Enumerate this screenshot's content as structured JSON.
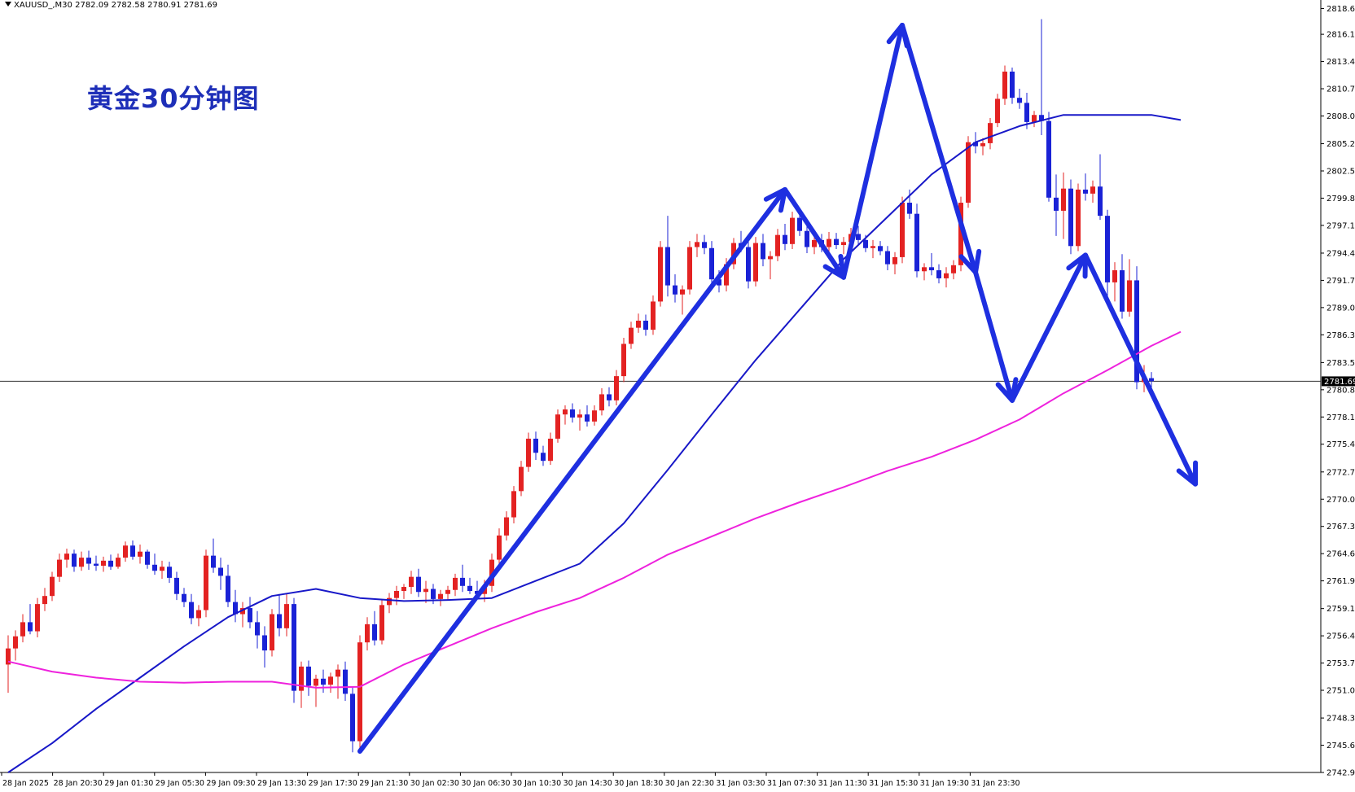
{
  "header": {
    "symbol_line": "XAUUSD_,M30  2782.09 2782.58 2780.91 2781.69"
  },
  "title": "黄金30分钟图",
  "colors": {
    "bull": "#e32222",
    "bear": "#1a22d6",
    "ma_fast": "#1818c8",
    "ma_slow": "#ee22dd",
    "arrows": "#1e2fe0",
    "title": "#1e2fb8"
  },
  "chart_data": {
    "type": "candlestick",
    "symbol": "XAUUSD_",
    "timeframe": "M30",
    "current_price": "2781.69",
    "y_ticks": [
      "2818.65",
      "2816.10",
      "2813.40",
      "2810.70",
      "2808.00",
      "2805.25",
      "2802.55",
      "2799.85",
      "2797.15",
      "2794.40",
      "2791.70",
      "2789.00",
      "2786.30",
      "2783.55",
      "2780.85",
      "2778.15",
      "2775.45",
      "2772.70",
      "2770.00",
      "2767.30",
      "2764.60",
      "2761.90",
      "2759.15",
      "2756.45",
      "2753.75",
      "2751.05",
      "2748.30",
      "2745.60",
      "2742.90"
    ],
    "x_ticks": [
      "28 Jan 2025",
      "28 Jan 20:30",
      "29 Jan 01:30",
      "29 Jan 05:30",
      "29 Jan 09:30",
      "29 Jan 13:30",
      "29 Jan 17:30",
      "29 Jan 21:30",
      "30 Jan 02:30",
      "30 Jan 06:30",
      "30 Jan 10:30",
      "30 Jan 14:30",
      "30 Jan 18:30",
      "30 Jan 22:30",
      "31 Jan 03:30",
      "31 Jan 07:30",
      "31 Jan 11:30",
      "31 Jan 15:30",
      "31 Jan 19:30",
      "31 Jan 23:30"
    ],
    "ylim": [
      2742.9,
      2819.5
    ],
    "candles": [
      [
        2753.6,
        2756.5,
        2750.8,
        2755.2
      ],
      [
        2755.2,
        2757.0,
        2754.0,
        2756.4
      ],
      [
        2756.4,
        2758.6,
        2755.8,
        2757.8
      ],
      [
        2757.8,
        2759.6,
        2756.6,
        2756.9
      ],
      [
        2756.9,
        2760.2,
        2756.3,
        2759.6
      ],
      [
        2759.6,
        2761.2,
        2758.9,
        2760.4
      ],
      [
        2760.4,
        2762.8,
        2759.9,
        2762.3
      ],
      [
        2762.3,
        2764.6,
        2761.8,
        2764.0
      ],
      [
        2764.0,
        2765.1,
        2763.2,
        2764.6
      ],
      [
        2764.6,
        2765.0,
        2762.8,
        2763.3
      ],
      [
        2763.3,
        2764.8,
        2762.9,
        2764.2
      ],
      [
        2764.2,
        2764.9,
        2763.0,
        2763.6
      ],
      [
        2763.6,
        2764.4,
        2762.9,
        2763.4
      ],
      [
        2763.4,
        2764.3,
        2762.8,
        2763.9
      ],
      [
        2763.9,
        2764.5,
        2763.0,
        2763.3
      ],
      [
        2763.3,
        2764.6,
        2763.1,
        2764.2
      ],
      [
        2764.2,
        2765.8,
        2763.8,
        2765.4
      ],
      [
        2765.4,
        2765.9,
        2764.0,
        2764.3
      ],
      [
        2764.3,
        2765.5,
        2763.6,
        2764.8
      ],
      [
        2764.8,
        2765.0,
        2763.1,
        2763.5
      ],
      [
        2763.5,
        2764.6,
        2762.5,
        2762.9
      ],
      [
        2762.9,
        2763.9,
        2762.1,
        2763.3
      ],
      [
        2763.3,
        2763.8,
        2761.7,
        2762.2
      ],
      [
        2762.2,
        2762.8,
        2760.0,
        2760.6
      ],
      [
        2760.6,
        2761.2,
        2759.3,
        2759.8
      ],
      [
        2759.8,
        2760.6,
        2757.6,
        2758.2
      ],
      [
        2758.2,
        2759.5,
        2757.4,
        2759.0
      ],
      [
        2759.0,
        2765.0,
        2758.3,
        2764.4
      ],
      [
        2764.4,
        2766.1,
        2762.7,
        2763.2
      ],
      [
        2763.2,
        2764.2,
        2761.0,
        2762.4
      ],
      [
        2762.4,
        2763.5,
        2759.3,
        2759.8
      ],
      [
        2759.8,
        2761.0,
        2757.8,
        2758.6
      ],
      [
        2758.6,
        2759.8,
        2757.3,
        2759.2
      ],
      [
        2759.2,
        2760.3,
        2757.2,
        2757.8
      ],
      [
        2757.8,
        2758.9,
        2755.2,
        2756.5
      ],
      [
        2756.5,
        2757.4,
        2753.3,
        2755.0
      ],
      [
        2755.0,
        2759.1,
        2754.4,
        2758.6
      ],
      [
        2758.6,
        2760.6,
        2756.4,
        2757.2
      ],
      [
        2757.2,
        2760.6,
        2756.4,
        2759.6
      ],
      [
        2759.6,
        2760.2,
        2749.8,
        2751.0
      ],
      [
        2751.0,
        2753.9,
        2749.3,
        2753.4
      ],
      [
        2753.4,
        2754.0,
        2750.5,
        2751.5
      ],
      [
        2751.5,
        2752.6,
        2749.4,
        2752.2
      ],
      [
        2752.2,
        2753.1,
        2750.8,
        2751.6
      ],
      [
        2751.6,
        2752.8,
        2750.8,
        2752.4
      ],
      [
        2752.4,
        2753.6,
        2750.2,
        2753.1
      ],
      [
        2753.1,
        2753.9,
        2750.0,
        2750.7
      ],
      [
        2750.7,
        2751.4,
        2744.9,
        2746.0
      ],
      [
        2746.0,
        2756.5,
        2744.8,
        2755.8
      ],
      [
        2755.8,
        2758.3,
        2755.0,
        2757.6
      ],
      [
        2757.6,
        2758.9,
        2755.5,
        2756.0
      ],
      [
        2756.0,
        2760.0,
        2755.6,
        2759.5
      ],
      [
        2759.5,
        2760.7,
        2758.7,
        2760.2
      ],
      [
        2760.2,
        2761.4,
        2759.5,
        2760.9
      ],
      [
        2760.9,
        2761.6,
        2760.1,
        2761.3
      ],
      [
        2761.3,
        2762.9,
        2760.6,
        2762.3
      ],
      [
        2762.3,
        2763.1,
        2760.3,
        2760.8
      ],
      [
        2760.8,
        2761.9,
        2759.7,
        2761.1
      ],
      [
        2761.1,
        2761.6,
        2759.6,
        2760.1
      ],
      [
        2760.1,
        2761.0,
        2759.4,
        2760.6
      ],
      [
        2760.6,
        2761.4,
        2760.0,
        2761.0
      ],
      [
        2761.0,
        2762.6,
        2760.4,
        2762.2
      ],
      [
        2762.2,
        2763.5,
        2760.8,
        2761.4
      ],
      [
        2761.4,
        2762.2,
        2760.6,
        2760.9
      ],
      [
        2760.9,
        2761.9,
        2760.3,
        2760.6
      ],
      [
        2760.6,
        2762.0,
        2759.8,
        2761.4
      ],
      [
        2761.4,
        2764.6,
        2760.8,
        2764.0
      ],
      [
        2764.0,
        2767.1,
        2763.4,
        2766.4
      ],
      [
        2766.4,
        2768.8,
        2765.9,
        2768.2
      ],
      [
        2768.2,
        2771.3,
        2767.6,
        2770.8
      ],
      [
        2770.8,
        2773.8,
        2770.3,
        2773.2
      ],
      [
        2773.2,
        2776.6,
        2772.7,
        2776.0
      ],
      [
        2776.0,
        2776.7,
        2773.9,
        2774.6
      ],
      [
        2774.6,
        2775.3,
        2773.3,
        2773.8
      ],
      [
        2773.8,
        2776.6,
        2773.4,
        2776.0
      ],
      [
        2776.0,
        2778.9,
        2775.6,
        2778.4
      ],
      [
        2778.4,
        2779.3,
        2777.4,
        2778.9
      ],
      [
        2778.9,
        2779.5,
        2777.6,
        2778.1
      ],
      [
        2778.1,
        2778.9,
        2776.8,
        2778.4
      ],
      [
        2778.4,
        2779.3,
        2777.2,
        2777.7
      ],
      [
        2777.7,
        2779.3,
        2777.3,
        2778.8
      ],
      [
        2778.8,
        2781.0,
        2778.3,
        2780.4
      ],
      [
        2780.4,
        2781.1,
        2779.2,
        2779.8
      ],
      [
        2779.8,
        2782.8,
        2779.3,
        2782.2
      ],
      [
        2782.2,
        2786.0,
        2781.6,
        2785.4
      ],
      [
        2785.4,
        2787.6,
        2784.9,
        2787.0
      ],
      [
        2787.0,
        2788.4,
        2786.5,
        2787.7
      ],
      [
        2787.7,
        2788.3,
        2786.2,
        2786.8
      ],
      [
        2786.8,
        2790.2,
        2786.3,
        2789.6
      ],
      [
        2789.6,
        2795.6,
        2789.1,
        2795.0
      ],
      [
        2795.0,
        2798.1,
        2790.1,
        2791.2
      ],
      [
        2791.2,
        2792.3,
        2789.5,
        2790.3
      ],
      [
        2790.3,
        2791.2,
        2788.3,
        2790.8
      ],
      [
        2790.8,
        2795.6,
        2790.3,
        2795.0
      ],
      [
        2795.0,
        2796.3,
        2794.0,
        2795.5
      ],
      [
        2795.5,
        2796.2,
        2794.3,
        2794.9
      ],
      [
        2794.9,
        2795.6,
        2791.2,
        2791.8
      ],
      [
        2791.8,
        2792.7,
        2790.5,
        2791.2
      ],
      [
        2791.2,
        2793.9,
        2790.6,
        2793.3
      ],
      [
        2793.3,
        2795.9,
        2792.8,
        2795.4
      ],
      [
        2795.4,
        2796.6,
        2794.5,
        2795.0
      ],
      [
        2795.0,
        2795.7,
        2790.9,
        2791.6
      ],
      [
        2791.6,
        2796.0,
        2791.1,
        2795.4
      ],
      [
        2795.4,
        2796.3,
        2793.1,
        2793.8
      ],
      [
        2793.8,
        2794.6,
        2791.8,
        2794.1
      ],
      [
        2794.1,
        2796.8,
        2793.6,
        2796.2
      ],
      [
        2796.2,
        2797.3,
        2794.7,
        2795.3
      ],
      [
        2795.3,
        2798.5,
        2794.8,
        2797.9
      ],
      [
        2797.9,
        2798.4,
        2796.1,
        2796.6
      ],
      [
        2796.6,
        2797.2,
        2794.4,
        2795.0
      ],
      [
        2795.0,
        2796.2,
        2794.3,
        2795.7
      ],
      [
        2795.7,
        2796.3,
        2794.5,
        2795.0
      ],
      [
        2795.0,
        2796.5,
        2794.4,
        2795.8
      ],
      [
        2795.8,
        2796.4,
        2794.8,
        2795.2
      ],
      [
        2795.2,
        2796.0,
        2794.3,
        2795.5
      ],
      [
        2795.5,
        2796.9,
        2794.9,
        2796.3
      ],
      [
        2796.3,
        2797.1,
        2795.3,
        2795.7
      ],
      [
        2795.7,
        2796.2,
        2794.5,
        2794.9
      ],
      [
        2794.9,
        2795.7,
        2793.9,
        2795.1
      ],
      [
        2795.1,
        2795.6,
        2794.2,
        2794.6
      ],
      [
        2794.6,
        2795.1,
        2792.7,
        2793.3
      ],
      [
        2793.3,
        2794.5,
        2792.3,
        2794.0
      ],
      [
        2794.0,
        2800.0,
        2793.4,
        2799.4
      ],
      [
        2799.4,
        2800.7,
        2797.8,
        2798.3
      ],
      [
        2798.3,
        2799.3,
        2792.0,
        2792.6
      ],
      [
        2792.6,
        2793.4,
        2791.7,
        2793.0
      ],
      [
        2793.0,
        2794.4,
        2792.2,
        2792.7
      ],
      [
        2792.7,
        2793.3,
        2791.4,
        2791.9
      ],
      [
        2791.9,
        2793.0,
        2791.0,
        2792.4
      ],
      [
        2792.4,
        2793.7,
        2791.8,
        2793.2
      ],
      [
        2793.2,
        2800.0,
        2792.6,
        2799.4
      ],
      [
        2799.4,
        2806.0,
        2798.9,
        2805.4
      ],
      [
        2805.4,
        2806.4,
        2804.3,
        2805.0
      ],
      [
        2805.0,
        2805.8,
        2804.1,
        2805.3
      ],
      [
        2805.3,
        2807.8,
        2804.7,
        2807.3
      ],
      [
        2807.3,
        2810.2,
        2806.9,
        2809.7
      ],
      [
        2809.7,
        2813.0,
        2809.1,
        2812.4
      ],
      [
        2812.4,
        2812.8,
        2809.2,
        2809.8
      ],
      [
        2809.8,
        2810.7,
        2808.7,
        2809.3
      ],
      [
        2809.3,
        2810.3,
        2806.7,
        2807.4
      ],
      [
        2807.4,
        2808.5,
        2806.9,
        2808.1
      ],
      [
        2808.1,
        2817.6,
        2806.1,
        2807.5
      ],
      [
        2807.5,
        2808.4,
        2799.5,
        2799.9
      ],
      [
        2799.9,
        2802.2,
        2796.1,
        2798.6
      ],
      [
        2798.6,
        2802.4,
        2795.8,
        2800.8
      ],
      [
        2800.8,
        2801.7,
        2794.3,
        2795.1
      ],
      [
        2795.1,
        2801.3,
        2794.6,
        2800.7
      ],
      [
        2800.7,
        2802.3,
        2799.6,
        2800.3
      ],
      [
        2800.3,
        2801.6,
        2799.4,
        2801.0
      ],
      [
        2801.0,
        2804.2,
        2797.7,
        2798.1
      ],
      [
        2798.1,
        2798.7,
        2790.1,
        2791.5
      ],
      [
        2791.5,
        2793.5,
        2789.6,
        2792.7
      ],
      [
        2792.7,
        2794.3,
        2787.9,
        2788.6
      ],
      [
        2788.6,
        2793.8,
        2788.1,
        2791.7
      ],
      [
        2791.7,
        2793.1,
        2780.9,
        2781.6
      ],
      [
        2781.6,
        2783.3,
        2780.6,
        2782.0
      ],
      [
        2782.0,
        2782.6,
        2780.9,
        2781.7
      ]
    ],
    "series": [
      {
        "name": "",
        "color": "#1818c8",
        "x": [
          0,
          6,
          12,
          18,
          24,
          30,
          36,
          42,
          48,
          54,
          60,
          66,
          72,
          78,
          84,
          90,
          96,
          102,
          108,
          114,
          120,
          126,
          132,
          138,
          144,
          150,
          156,
          160
        ],
        "values": [
          2742.9,
          2745.8,
          2749.2,
          2752.3,
          2755.4,
          2758.3,
          2760.4,
          2761.1,
          2760.2,
          2759.9,
          2760.0,
          2760.2,
          2761.9,
          2763.6,
          2767.6,
          2772.9,
          2778.4,
          2783.8,
          2788.8,
          2793.8,
          2798.0,
          2802.2,
          2805.4,
          2807.0,
          2808.1,
          2808.1,
          2808.1,
          2807.6
        ]
      },
      {
        "name": "",
        "color": "#ee22dd",
        "x": [
          0,
          6,
          12,
          18,
          24,
          30,
          36,
          42,
          48,
          54,
          60,
          66,
          72,
          78,
          84,
          90,
          96,
          102,
          108,
          114,
          120,
          126,
          132,
          138,
          144,
          150,
          156,
          160
        ],
        "values": [
          2753.9,
          2752.9,
          2752.3,
          2751.9,
          2751.8,
          2751.9,
          2751.9,
          2751.3,
          2751.4,
          2753.6,
          2755.4,
          2757.2,
          2758.8,
          2760.2,
          2762.2,
          2764.5,
          2766.3,
          2768.1,
          2769.7,
          2771.2,
          2772.8,
          2774.2,
          2775.9,
          2777.9,
          2780.5,
          2782.8,
          2785.2,
          2786.6
        ]
      }
    ],
    "annotation_arrows": [
      {
        "x": [
          48,
          106
        ],
        "values": [
          2745.0,
          2800.7
        ]
      },
      {
        "x": [
          106,
          114
        ],
        "values": [
          2800.7,
          2792.0
        ]
      },
      {
        "x": [
          114,
          122
        ],
        "values": [
          2792.0,
          2817.0
        ]
      },
      {
        "x": [
          122,
          132
        ],
        "values": [
          2817.0,
          2792.5
        ]
      },
      {
        "x": [
          132,
          137
        ],
        "values": [
          2792.5,
          2779.8
        ]
      },
      {
        "x": [
          137,
          147
        ],
        "values": [
          2779.8,
          2794.2
        ]
      },
      {
        "x": [
          147,
          162
        ],
        "values": [
          2794.2,
          2771.5
        ]
      }
    ]
  }
}
